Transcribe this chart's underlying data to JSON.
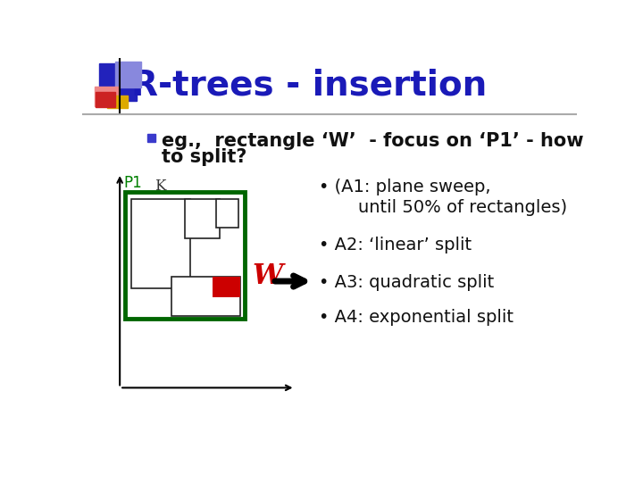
{
  "title": "R-trees - insertion",
  "title_color": "#1a1ab8",
  "background_color": "#ffffff",
  "bullet_text_line1": "eg.,  rectangle ‘W’  - focus on ‘P1’ - how",
  "bullet_text_line2": "to split?",
  "bullet_color": "#3a3acc",
  "p1_label": "P1",
  "k_label": "K",
  "p1_color": "#008000",
  "w_label": "W",
  "w_color": "#cc0000",
  "items": [
    "(A1: plane sweep,",
    "until 50% of rectangles)",
    "A2: ‘linear’ split",
    "A3: quadratic split",
    "A4: exponential split"
  ],
  "arrow_item_index": 3,
  "header_line_color": "#aaaaaa",
  "icon_blue_dark": "#2222bb",
  "icon_blue_light": "#8888dd",
  "icon_red": "#cc2222",
  "icon_yellow": "#ddaa00",
  "icon_pink": "#ee8888"
}
